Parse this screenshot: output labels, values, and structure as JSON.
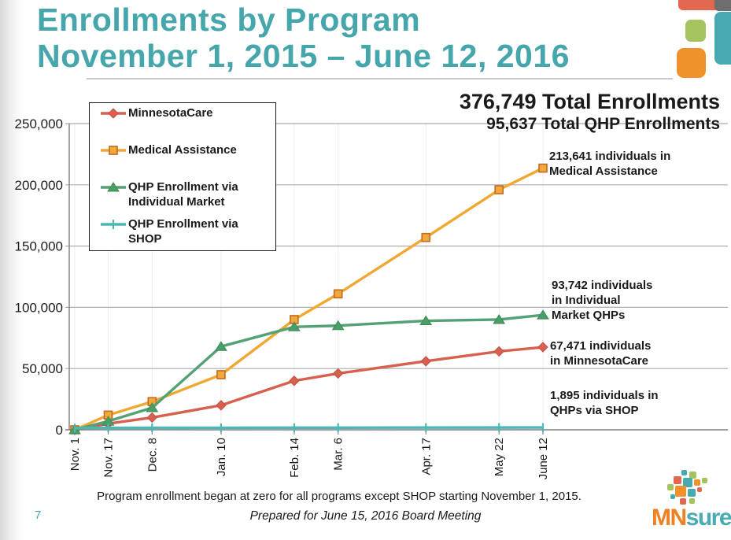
{
  "slide": {
    "title_line1": "Enrollments by Program",
    "title_line2": "November 1, 2015 – June 12, 2016",
    "page_number": "7",
    "footnote": "Program enrollment began at zero for all programs except SHOP starting November 1, 2015.",
    "prepared_line": "Prepared for June 15, 2016 Board Meeting"
  },
  "totals": {
    "total_enrollments": "376,749 Total Enrollments",
    "total_qhp_enrollments": "95,637 Total QHP Enrollments"
  },
  "annotations": {
    "medical_assistance": "213,641 individuals in\nMedical Assistance",
    "individual_market": "93,742 individuals\nin Individual\nMarket QHPs",
    "minnesotacare": "67,471 individuals\nin MinnesotaCare",
    "shop": "1,895 individuals in\nQHPs via SHOP"
  },
  "logo": {
    "mn": "MN",
    "sure": "sure"
  },
  "colors": {
    "title_teal": "#45A6AB",
    "brand_coral": "#E0694F",
    "brand_gray": "#6E6E6E",
    "brand_teal": "#47AAB0",
    "brand_green": "#A5C35F",
    "brand_orange": "#F0922B",
    "logo_mn_orange": "#F08122",
    "logo_sure_teal": "#48ACB2",
    "grid_gray": "#ABABAB",
    "axis_gray": "#7E7E7E"
  },
  "chart_data": {
    "type": "line",
    "title": "Enrollments by Program, November 1, 2015 – June 12, 2016",
    "categories": [
      "Nov. 1",
      "Nov. 17",
      "Dec. 8",
      "Jan. 10",
      "Feb. 14",
      "Mar. 6",
      "Apr. 17",
      "May 22",
      "June 12"
    ],
    "x_days_from_nov1": [
      0,
      16,
      37,
      70,
      105,
      126,
      168,
      203,
      224
    ],
    "ylim": [
      0,
      250000
    ],
    "ytick_interval": 50000,
    "ytick_labels": [
      "0",
      "50,000",
      "100,000",
      "150,000",
      "200,000",
      "250,000"
    ],
    "grid": "horizontal-on",
    "legend_position": "upper-left boxed",
    "series": [
      {
        "name": "MinnesotaCare",
        "marker": "diamond",
        "color": "#D8604F",
        "marker_fill": "#D8604F",
        "marker_border": "#C24F40",
        "values": [
          0,
          5000,
          10000,
          20000,
          40000,
          46000,
          56000,
          64000,
          67471
        ]
      },
      {
        "name": "Medical Assistance",
        "marker": "square",
        "color": "#F0A833",
        "marker_fill": "#F2A93C",
        "marker_border": "#C26B21",
        "values": [
          0,
          12000,
          23000,
          45000,
          90000,
          111000,
          157000,
          196000,
          213641
        ]
      },
      {
        "name": "QHP Enrollment via\nIndividual Market",
        "marker": "triangle",
        "color": "#55A176",
        "marker_fill": "#4A9E68",
        "marker_border": "#3E8A54",
        "values": [
          0,
          7000,
          18000,
          68000,
          84000,
          85000,
          89000,
          90000,
          93742
        ]
      },
      {
        "name": "QHP Enrollment via\nSHOP",
        "marker": "plus",
        "color": "#4BB8B7",
        "marker_fill": "#4BB8B7",
        "marker_border": "#4BB8B7",
        "values": [
          1500,
          1550,
          1600,
          1650,
          1700,
          1750,
          1800,
          1850,
          1895
        ]
      }
    ],
    "annotations_on_chart": [
      "213,641 individuals in Medical Assistance",
      "93,742 individuals in Individual Market QHPs",
      "67,471 individuals in MinnesotaCare",
      "1,895 individuals in QHPs via SHOP"
    ],
    "headline_totals": [
      "376,749 Total Enrollments",
      "95,637 Total QHP Enrollments"
    ]
  }
}
